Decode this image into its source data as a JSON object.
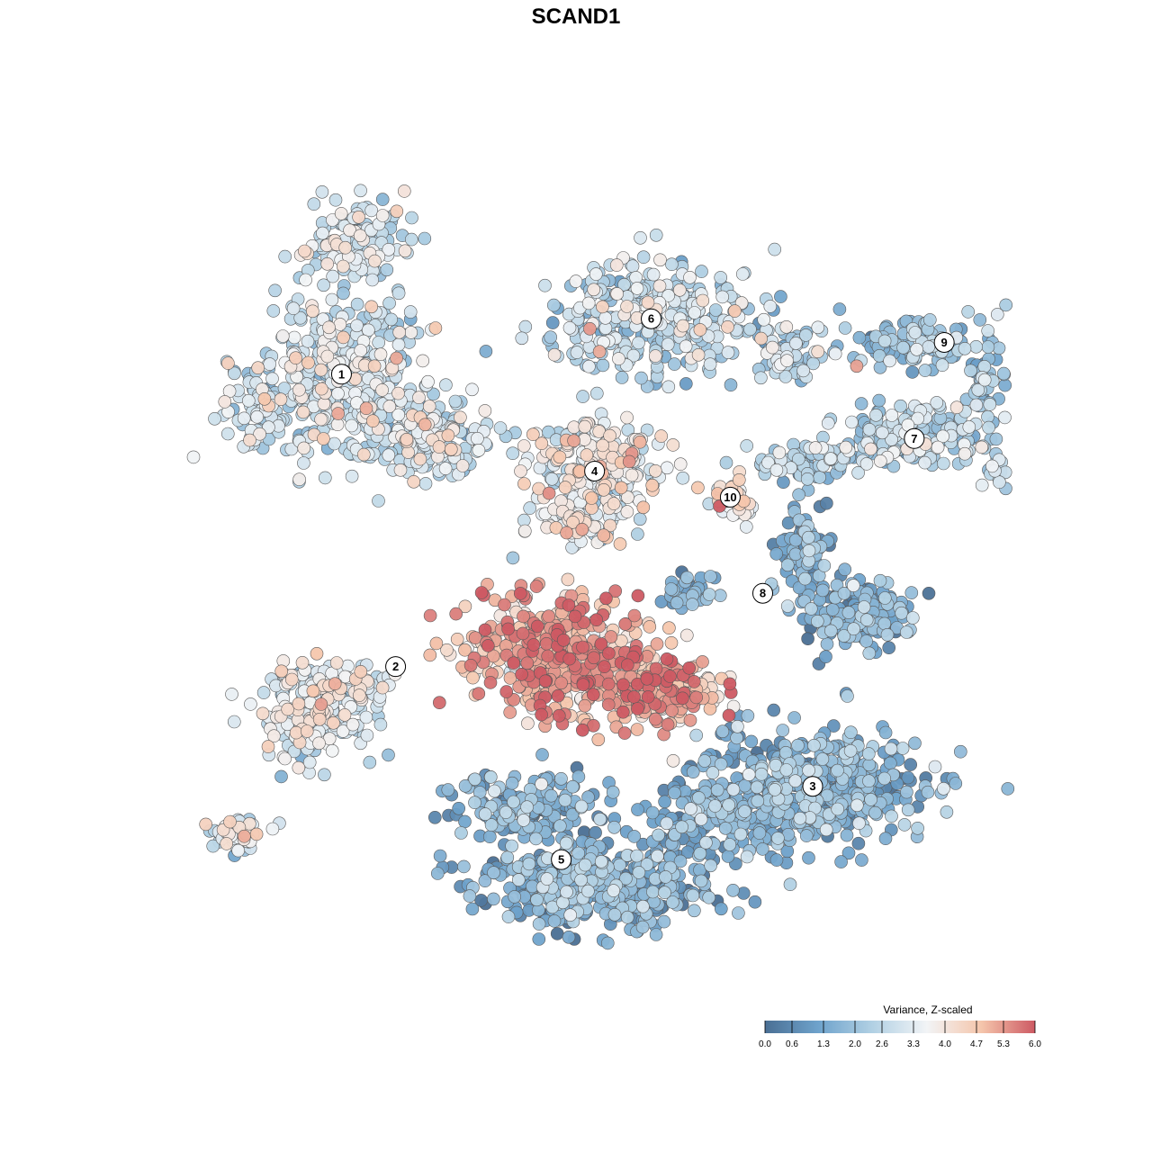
{
  "chart_data": {
    "type": "scatter",
    "title": "SCAND1",
    "xlabel": "",
    "ylabel": "",
    "grid": false,
    "x_range": [
      0,
      100
    ],
    "y_range": [
      0,
      100
    ],
    "legend": {
      "title": "Variance, Z-scaled",
      "placement": "bottom-right",
      "range": [
        0.0,
        6.0
      ],
      "ticks": [
        "0.0",
        "0.6",
        "1.3",
        "2.0",
        "2.6",
        "3.3",
        "4.0",
        "4.7",
        "5.3",
        "6.0"
      ],
      "colors": [
        "#4a6f94",
        "#6fa3cc",
        "#b2d1e4",
        "#f2f4f6",
        "#f5c6ac",
        "#cd5a63"
      ]
    },
    "clusters": [
      {
        "label": "1",
        "x": 19.4,
        "y": 74.5,
        "mean_value": 2.9
      },
      {
        "label": "2",
        "x": 25.9,
        "y": 38.6,
        "mean_value": 3.2
      },
      {
        "label": "3",
        "x": 76.0,
        "y": 23.9,
        "mean_value": 1.5
      },
      {
        "label": "4",
        "x": 49.8,
        "y": 62.6,
        "mean_value": 3.4
      },
      {
        "label": "5",
        "x": 45.8,
        "y": 14.9,
        "mean_value": 1.4
      },
      {
        "label": "6",
        "x": 56.6,
        "y": 81.3,
        "mean_value": 2.6
      },
      {
        "label": "7",
        "x": 88.2,
        "y": 66.6,
        "mean_value": 2.3
      },
      {
        "label": "8",
        "x": 70.0,
        "y": 47.6,
        "mean_value": 1.4
      },
      {
        "label": "9",
        "x": 91.8,
        "y": 78.4,
        "mean_value": 2.0
      },
      {
        "label": "10",
        "x": 66.1,
        "y": 59.4,
        "mean_value": 3.9
      }
    ],
    "hotspot": {
      "x": 45.0,
      "y": 40.0,
      "mean_value": 4.8
    }
  }
}
